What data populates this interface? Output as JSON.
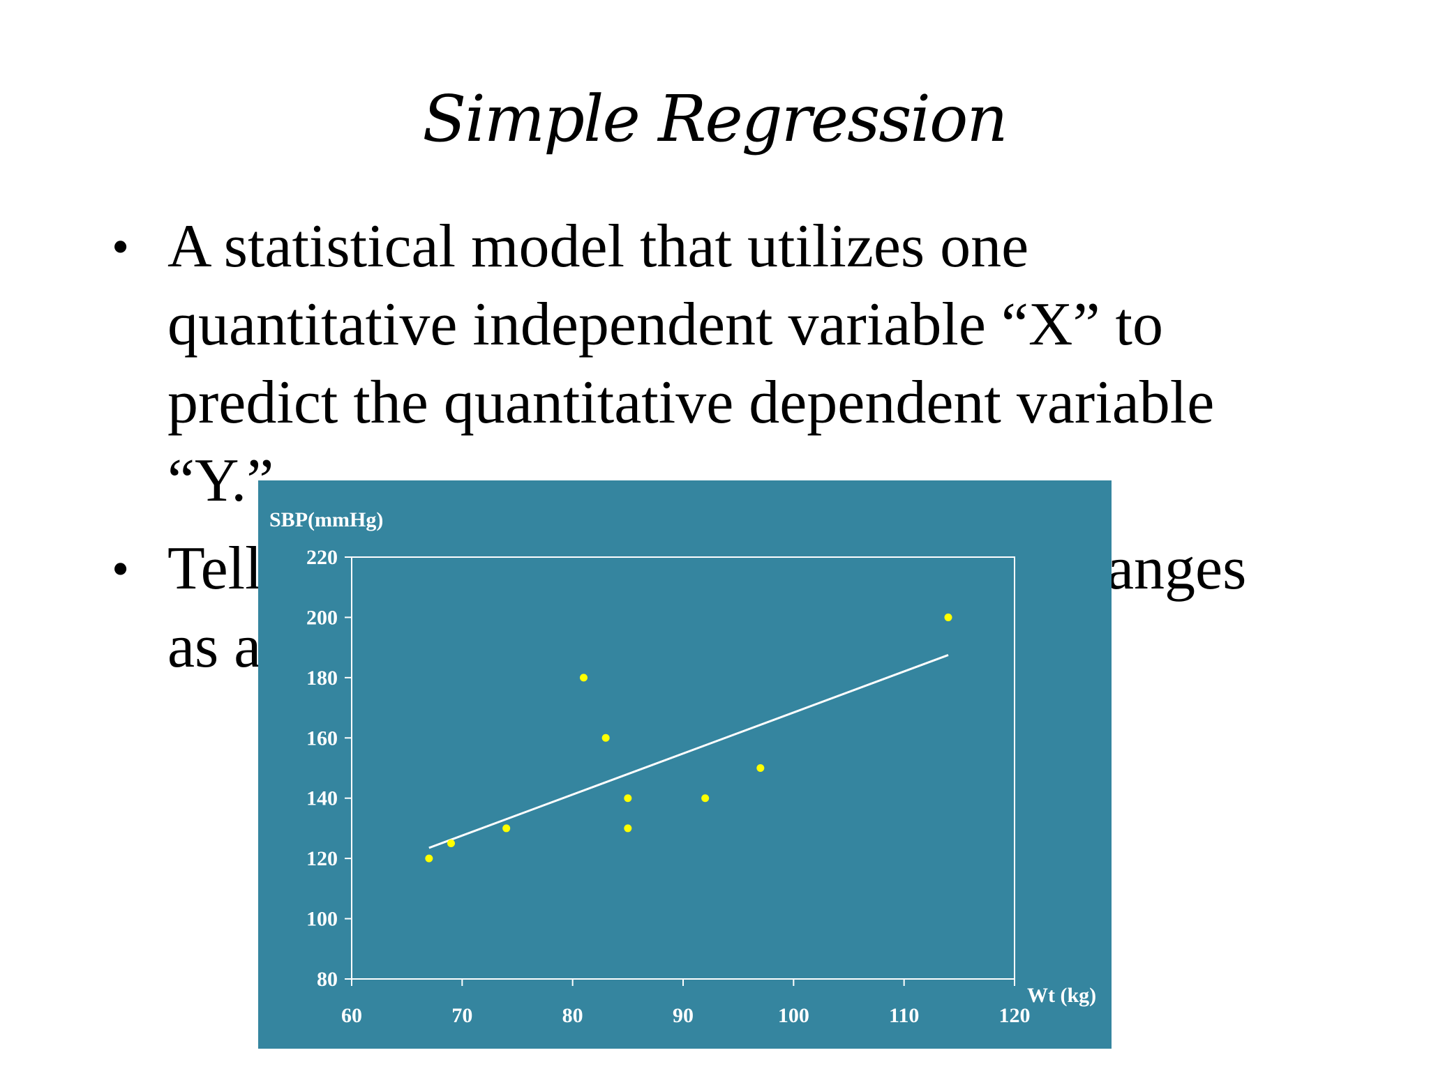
{
  "slide": {
    "title": "Simple Regression",
    "bullets": [
      "A statistical model that utilizes  one quantitative independent variable “X” to predict the quantitative dependent variable “Y.”",
      "Tells how the dependent variable Y changes as a function of X"
    ]
  },
  "chart_data": {
    "type": "scatter",
    "title": "",
    "xlabel": "Wt (kg)",
    "ylabel": "SBP(mmHg)",
    "xlim": [
      60,
      120
    ],
    "ylim": [
      80,
      220
    ],
    "xticks": [
      60,
      70,
      80,
      90,
      100,
      110,
      120
    ],
    "yticks": [
      80,
      100,
      120,
      140,
      160,
      180,
      200,
      220
    ],
    "grid": false,
    "legend": "none",
    "colors": {
      "background": "#35859f",
      "points": "#ffff00",
      "line": "#ffffff",
      "axes": "#ffffff"
    },
    "points": [
      {
        "x": 67,
        "y": 120
      },
      {
        "x": 69,
        "y": 125
      },
      {
        "x": 74,
        "y": 130
      },
      {
        "x": 81,
        "y": 180
      },
      {
        "x": 83,
        "y": 160
      },
      {
        "x": 85,
        "y": 140
      },
      {
        "x": 85,
        "y": 130
      },
      {
        "x": 92,
        "y": 140
      },
      {
        "x": 97,
        "y": 150
      },
      {
        "x": 114,
        "y": 200
      }
    ],
    "trendline": {
      "x": [
        67,
        114
      ],
      "y": [
        123.5,
        187.5
      ]
    }
  }
}
